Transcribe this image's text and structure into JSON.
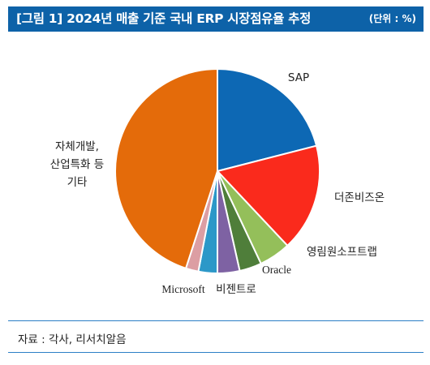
{
  "header": {
    "title": "[그림 1] 2024년 매출 기준 국내 ERP 시장점유율 추정",
    "unit": "(단위 : %)"
  },
  "chart_data": {
    "type": "pie",
    "start_angle_deg": 0,
    "direction": "clockwise",
    "slices": [
      {
        "label": "SAP",
        "value": 21,
        "color": "#0d68b4"
      },
      {
        "label": "더존비즈온",
        "value": 17,
        "color": "#fa2a1c"
      },
      {
        "label": "영림원소프트랩",
        "value": 5,
        "color": "#94bf5a"
      },
      {
        "label": "Oracle",
        "value": 3.5,
        "color": "#4f7e3a"
      },
      {
        "label": "비젠트로",
        "value": 3.5,
        "color": "#7e62a3"
      },
      {
        "label": "",
        "value": 3,
        "color": "#2c98c8"
      },
      {
        "label": "Microsoft",
        "value": 2,
        "color": "#dc9ea3"
      },
      {
        "label": "자체개발,\n산업특화 등\n기타",
        "value": 45,
        "color": "#e46b0a"
      }
    ]
  },
  "footer": {
    "source": "자료 : 각사, 리서치알음"
  }
}
